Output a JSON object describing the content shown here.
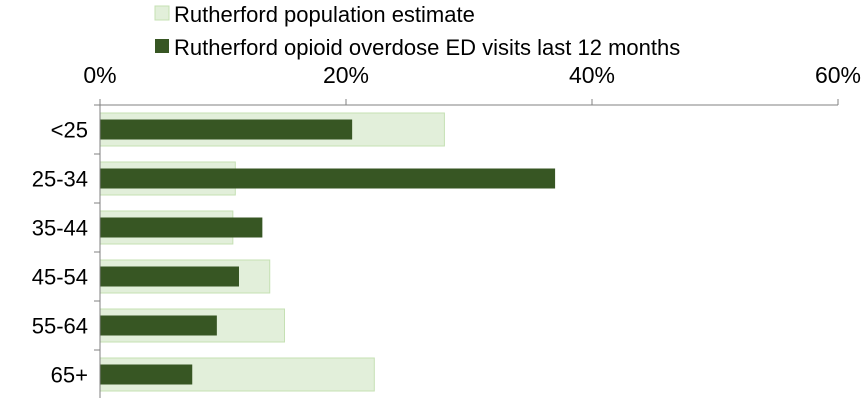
{
  "chart_data": {
    "type": "bar",
    "orientation": "horizontal",
    "categories": [
      "<25",
      "25-34",
      "35-44",
      "45-54",
      "55-64",
      "65+"
    ],
    "series": [
      {
        "name": "Rutherford population estimate",
        "values": [
          28.0,
          11.0,
          10.8,
          13.8,
          15.0,
          22.3
        ],
        "color": "#e2efda",
        "border": "#c5e0b3"
      },
      {
        "name": "Rutherford opioid overdose ED visits last 12 months",
        "values": [
          20.5,
          37.0,
          13.2,
          11.3,
          9.5,
          7.5
        ],
        "color": "#375623"
      }
    ],
    "x_ticks": [
      "0%",
      "20%",
      "40%",
      "60%"
    ],
    "xlim": [
      0,
      60
    ],
    "x_axis_position": "top",
    "legend_position": "top",
    "grid": false
  }
}
